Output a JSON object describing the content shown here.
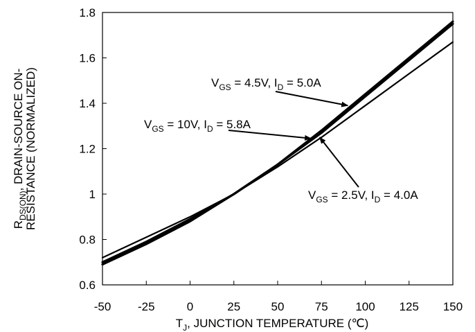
{
  "chart_data": {
    "type": "line",
    "title": "",
    "xlabel": {
      "main": "T",
      "sub": "J",
      "rest": ", JUNCTION TEMPERATURE (℃)"
    },
    "ylabel": {
      "line1_main": "R",
      "line1_sub": "DS(ON)",
      "line1_rest": ", DRAIN-SOURCE ON-",
      "line2": "RESISTANCE (NORMALIZED)"
    },
    "xlim": [
      -50,
      150
    ],
    "ylim": [
      0.6,
      1.8
    ],
    "xticks": [
      -50,
      -25,
      0,
      25,
      50,
      75,
      100,
      125,
      150
    ],
    "xtick_labels": [
      "-50",
      "-25",
      "0",
      "25",
      "50",
      "75",
      "100",
      "125",
      "150"
    ],
    "yticks": [
      0.6,
      0.8,
      1.0,
      1.2,
      1.4,
      1.6,
      1.8
    ],
    "ytick_labels": [
      "0.6",
      "0.8",
      "1",
      "1.2",
      "1.4",
      "1.6",
      "1.8"
    ],
    "grid": false,
    "series": [
      {
        "name": "VGS = 4.5V, ID = 5.0A",
        "x": [
          -50,
          -25,
          0,
          25,
          50,
          75,
          100,
          125,
          150
        ],
        "y": [
          0.7,
          0.79,
          0.89,
          1.0,
          1.13,
          1.28,
          1.44,
          1.6,
          1.76
        ]
      },
      {
        "name": "VGS = 10V, ID = 5.8A",
        "x": [
          -50,
          -25,
          0,
          25,
          50,
          75,
          100,
          125,
          150
        ],
        "y": [
          0.69,
          0.78,
          0.88,
          1.0,
          1.13,
          1.27,
          1.43,
          1.59,
          1.75
        ]
      },
      {
        "name": "VGS = 2.5V, ID = 4.0A",
        "x": [
          -50,
          -25,
          0,
          25,
          50,
          75,
          100,
          125,
          150
        ],
        "y": [
          0.72,
          0.81,
          0.9,
          1.0,
          1.12,
          1.25,
          1.39,
          1.53,
          1.67
        ]
      }
    ],
    "annotations": [
      {
        "vgs": "4.5V",
        "id": "5.0A",
        "series": 0,
        "arrow_to": [
          90,
          1.39
        ]
      },
      {
        "vgs": "10V",
        "id": "5.8A",
        "series": 1,
        "arrow_to": [
          69,
          1.245
        ]
      },
      {
        "vgs": "2.5V",
        "id": "4.0A",
        "series": 2,
        "arrow_to": [
          74,
          1.25
        ]
      }
    ],
    "annotation_parts": {
      "v": "V",
      "v_sub": "GS",
      "i": "I",
      "i_sub": "D",
      "eq": " = ",
      "sep": ", "
    }
  }
}
